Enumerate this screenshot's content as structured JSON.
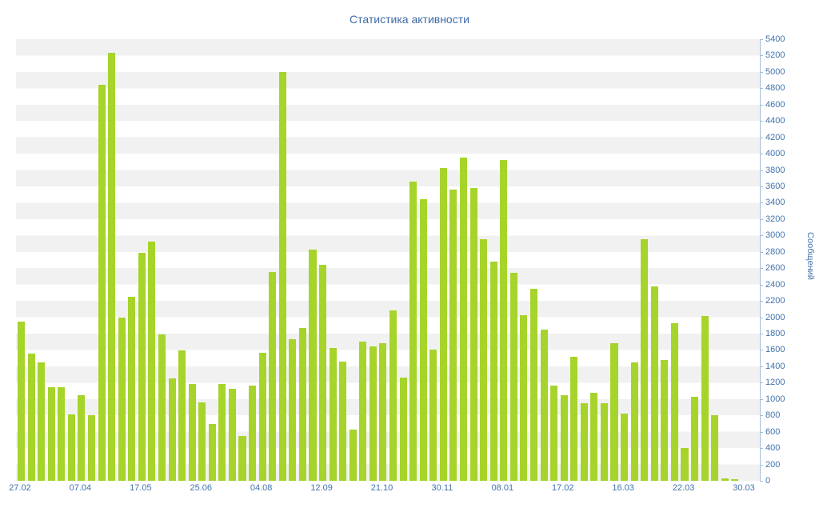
{
  "chart_data": {
    "type": "bar",
    "title": "Статистика активности",
    "ylabel": "Сообщений",
    "xlabel": "",
    "ylim": [
      0,
      5400
    ],
    "ytick_step": 200,
    "yticks": [
      0,
      200,
      400,
      600,
      800,
      1000,
      1200,
      1400,
      1600,
      1800,
      2000,
      2200,
      2400,
      2600,
      2800,
      3000,
      3200,
      3400,
      3600,
      3800,
      4000,
      4200,
      4400,
      4600,
      4800,
      5000,
      5200,
      5400
    ],
    "xticks": [
      "27.02",
      "07.04",
      "17.05",
      "25.06",
      "04.08",
      "12.09",
      "21.10",
      "30.11",
      "08.01",
      "17.02",
      "16.03",
      "22.03",
      "30.03"
    ],
    "values": [
      1950,
      1560,
      1450,
      1140,
      1140,
      810,
      1050,
      800,
      4840,
      5230,
      2000,
      2250,
      2790,
      2930,
      1790,
      1250,
      1590,
      1180,
      960,
      690,
      1180,
      1130,
      550,
      1160,
      1570,
      2550,
      5000,
      1730,
      1870,
      2830,
      2640,
      1620,
      1460,
      630,
      1700,
      1640,
      1680,
      2080,
      1260,
      3660,
      3440,
      1600,
      3830,
      3560,
      3950,
      3580,
      2950,
      2680,
      3920,
      2540,
      2030,
      2350,
      1850,
      1160,
      1050,
      1520,
      950,
      1080,
      950,
      1680,
      820,
      1450,
      2950,
      2380,
      1480,
      1930,
      400,
      1030,
      2020,
      800,
      30,
      20
    ],
    "grid": "striped-horizontal-bands",
    "legend": "none",
    "colors": {
      "bar": "#a6d42a",
      "axis_text": "#4273ab",
      "title_text": "#3f6ba8",
      "axis_line": "#a7bcd9",
      "stripe": "#f1f1f1",
      "background": "#ffffff"
    }
  }
}
